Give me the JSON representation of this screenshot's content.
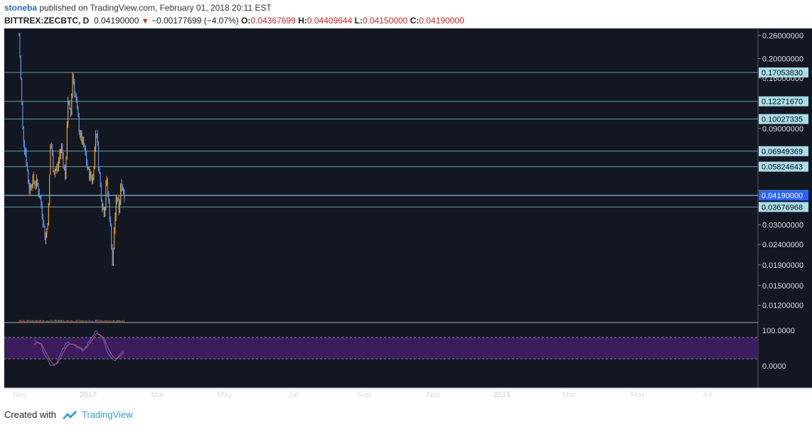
{
  "header": {
    "author": "stoneba",
    "published_text": "published on TradingView.com, February 01, 2018 20:11 EST",
    "symbol": "BITTREX:ZECBTC, D",
    "last": "0.04190000",
    "change": "−0.00177699 (−4.07%)",
    "open_label": "O:",
    "open": "0.04367699",
    "high_label": "H:",
    "high": "0.04409644",
    "low_label": "L:",
    "low": "0.04150000",
    "close_label": "C:",
    "close": "0.04190000",
    "change_direction": "down"
  },
  "footer": {
    "created_with": "Created with",
    "brand": "TradingView",
    "logo_icon": "tradingview-logo-icon"
  },
  "colors": {
    "background": "#131722",
    "up": "#f7a21b",
    "down": "#5b9cf6",
    "hline": "#5f9ea0",
    "label_bg": "#a7dde9",
    "current_bg": "#2962ff",
    "stoch_band": "#3b1d5e",
    "stoch_k": "#3f6bff",
    "stoch_d": "#e04a3f",
    "volume_up": "#4a8a6a",
    "volume_down": "#b04848"
  },
  "chart_data": {
    "type": "candlestick",
    "price_axis_ticks": [
      "0.26000000",
      "0.20000000",
      "0.16000000",
      "0.09000000",
      "0.06000000",
      "0.03000000",
      "0.02400000",
      "0.01900000",
      "0.01500000",
      "0.01200000"
    ],
    "horizontal_levels": [
      "0.17053830",
      "0.12271670",
      "0.10027335",
      "0.06949369",
      "0.05824643",
      "0.04207891",
      "0.03676968"
    ],
    "current_price": "0.04190000",
    "time_axis": [
      "Nov",
      "2017",
      "Mar",
      "May",
      "Jul",
      "Sep",
      "Nov",
      "2018",
      "Mar",
      "May",
      "Jul"
    ],
    "series": [
      {
        "date": "2016-10-28",
        "value": 0.26
      },
      {
        "date": "2016-11-04",
        "value": 0.17
      },
      {
        "date": "2016-11-14",
        "value": 0.085
      },
      {
        "date": "2016-11-28",
        "value": 0.065
      },
      {
        "date": "2016-12-10",
        "value": 0.045
      },
      {
        "date": "2016-12-25",
        "value": 0.05
      },
      {
        "date": "2017-01-15",
        "value": 0.048
      },
      {
        "date": "2017-02-05",
        "value": 0.036
      },
      {
        "date": "2017-02-20",
        "value": 0.025
      },
      {
        "date": "2017-03-05",
        "value": 0.034
      },
      {
        "date": "2017-03-15",
        "value": 0.08
      },
      {
        "date": "2017-03-28",
        "value": 0.055
      },
      {
        "date": "2017-04-15",
        "value": 0.058
      },
      {
        "date": "2017-04-30",
        "value": 0.075
      },
      {
        "date": "2017-05-20",
        "value": 0.05
      },
      {
        "date": "2017-05-28",
        "value": 0.13
      },
      {
        "date": "2017-06-10",
        "value": 0.1
      },
      {
        "date": "2017-06-18",
        "value": 0.17
      },
      {
        "date": "2017-07-01",
        "value": 0.13
      },
      {
        "date": "2017-07-20",
        "value": 0.085
      },
      {
        "date": "2017-08-10",
        "value": 0.07
      },
      {
        "date": "2017-08-25",
        "value": 0.055
      },
      {
        "date": "2017-09-15",
        "value": 0.05
      },
      {
        "date": "2017-09-30",
        "value": 0.095
      },
      {
        "date": "2017-10-10",
        "value": 0.06
      },
      {
        "date": "2017-10-25",
        "value": 0.038
      },
      {
        "date": "2017-11-05",
        "value": 0.034
      },
      {
        "date": "2017-11-12",
        "value": 0.052
      },
      {
        "date": "2017-11-22",
        "value": 0.04
      },
      {
        "date": "2017-12-05",
        "value": 0.025
      },
      {
        "date": "2017-12-10",
        "value": 0.018
      },
      {
        "date": "2017-12-18",
        "value": 0.03
      },
      {
        "date": "2017-12-28",
        "value": 0.042
      },
      {
        "date": "2018-01-08",
        "value": 0.035
      },
      {
        "date": "2018-01-15",
        "value": 0.05
      },
      {
        "date": "2018-01-25",
        "value": 0.045
      },
      {
        "date": "2018-02-01",
        "value": 0.0419
      }
    ],
    "volume_panel": true,
    "oscillator": {
      "name": "",
      "ticks": [
        "100.0000",
        "0.0000"
      ],
      "upper_band": 80,
      "lower_band": 20
    },
    "grid": false
  }
}
